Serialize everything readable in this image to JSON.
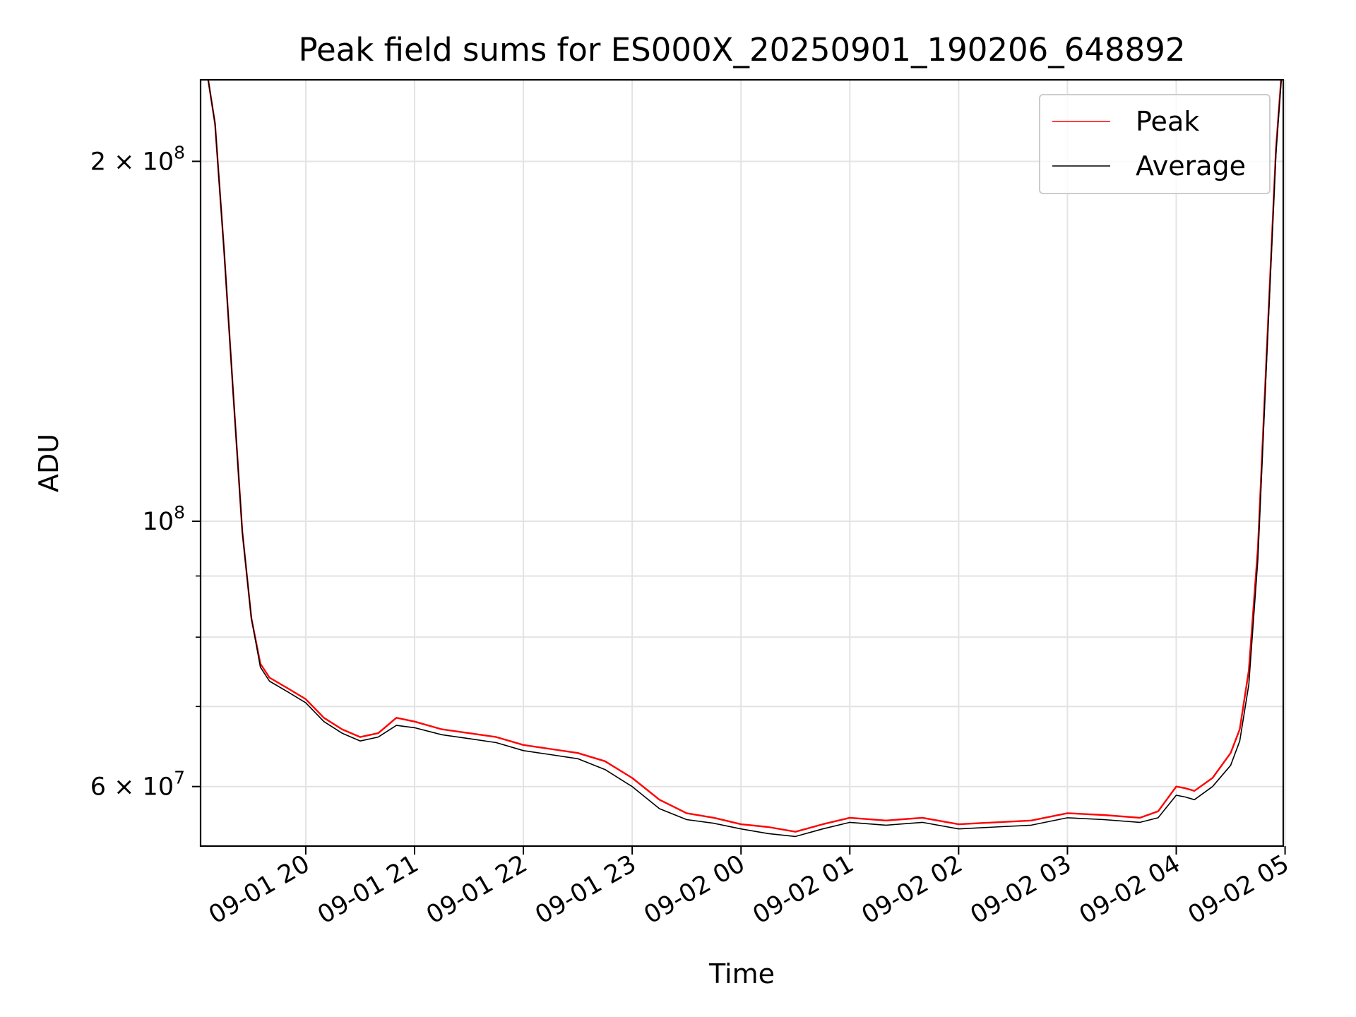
{
  "chart_data": {
    "type": "line",
    "title": "Peak field sums for ES000X_20250901_190206_648892",
    "xlabel": "Time",
    "ylabel": "ADU",
    "yscale": "log",
    "ylim": [
      53500000,
      234000000
    ],
    "xlim": [
      "2025-09-01 19:02",
      "2025-09-02 04:59"
    ],
    "x_ticks": [
      "09-01 20",
      "09-01 21",
      "09-01 22",
      "09-01 23",
      "09-02 00",
      "09-02 01",
      "09-02 02",
      "09-02 03",
      "09-02 04",
      "09-02 05"
    ],
    "y_ticks": [
      {
        "value": 60000000,
        "base": "6 × 10",
        "exp": "7"
      },
      {
        "value": 100000000,
        "base": "10",
        "exp": "8"
      },
      {
        "value": 200000000,
        "base": "2 × 10",
        "exp": "8"
      }
    ],
    "y_minor_ticks": [
      70000000,
      80000000,
      90000000
    ],
    "grid": true,
    "legend_position": "top-right",
    "x": [
      "2025-09-01 19:06",
      "2025-09-01 19:10",
      "2025-09-01 19:15",
      "2025-09-01 19:20",
      "2025-09-01 19:25",
      "2025-09-01 19:30",
      "2025-09-01 19:35",
      "2025-09-01 19:40",
      "2025-09-01 19:50",
      "2025-09-01 20:00",
      "2025-09-01 20:10",
      "2025-09-01 20:20",
      "2025-09-01 20:30",
      "2025-09-01 20:40",
      "2025-09-01 20:50",
      "2025-09-01 21:00",
      "2025-09-01 21:15",
      "2025-09-01 21:30",
      "2025-09-01 21:45",
      "2025-09-01 22:00",
      "2025-09-01 22:15",
      "2025-09-01 22:30",
      "2025-09-01 22:45",
      "2025-09-01 23:00",
      "2025-09-01 23:15",
      "2025-09-01 23:30",
      "2025-09-01 23:45",
      "2025-09-02 00:00",
      "2025-09-02 00:15",
      "2025-09-02 00:30",
      "2025-09-02 00:45",
      "2025-09-02 01:00",
      "2025-09-02 01:20",
      "2025-09-02 01:40",
      "2025-09-02 02:00",
      "2025-09-02 02:20",
      "2025-09-02 02:40",
      "2025-09-02 03:00",
      "2025-09-02 03:20",
      "2025-09-02 03:40",
      "2025-09-02 03:50",
      "2025-09-02 04:00",
      "2025-09-02 04:05",
      "2025-09-02 04:10",
      "2025-09-02 04:20",
      "2025-09-02 04:30",
      "2025-09-02 04:35",
      "2025-09-02 04:40",
      "2025-09-02 04:45",
      "2025-09-02 04:50",
      "2025-09-02 04:55",
      "2025-09-02 04:58"
    ],
    "series": [
      {
        "name": "Peak",
        "color": "#ff0000",
        "values": [
          235000000,
          215000000,
          168000000,
          128000000,
          98000000,
          83000000,
          76000000,
          74000000,
          72500000,
          71000000,
          68500000,
          67000000,
          66000000,
          66500000,
          68500000,
          68000000,
          67000000,
          66500000,
          66000000,
          65000000,
          64500000,
          64000000,
          63000000,
          61000000,
          58500000,
          57000000,
          56500000,
          55800000,
          55500000,
          55000000,
          55800000,
          56500000,
          56200000,
          56500000,
          55800000,
          56000000,
          56200000,
          57000000,
          56800000,
          56500000,
          57200000,
          60000000,
          59800000,
          59500000,
          61000000,
          64000000,
          67000000,
          75000000,
          95000000,
          140000000,
          205000000,
          236000000
        ]
      },
      {
        "name": "Average",
        "color": "#000000",
        "values": [
          235000000,
          215000000,
          168000000,
          128000000,
          98000000,
          83000000,
          75500000,
          73500000,
          72000000,
          70500000,
          68000000,
          66500000,
          65500000,
          66000000,
          67500000,
          67200000,
          66300000,
          65800000,
          65300000,
          64300000,
          63800000,
          63300000,
          62000000,
          60000000,
          57500000,
          56300000,
          55900000,
          55300000,
          54800000,
          54500000,
          55300000,
          56000000,
          55700000,
          56000000,
          55300000,
          55500000,
          55700000,
          56500000,
          56300000,
          56000000,
          56500000,
          59000000,
          58800000,
          58500000,
          60000000,
          62500000,
          65500000,
          73000000,
          93000000,
          138000000,
          203000000,
          235000000
        ]
      }
    ]
  }
}
